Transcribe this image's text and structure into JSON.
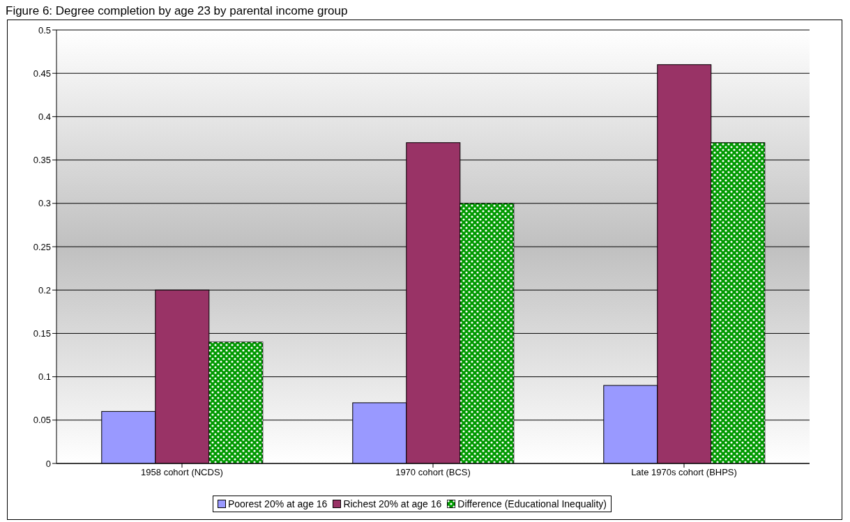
{
  "chart_data": {
    "type": "bar",
    "title": "Figure 6:  Degree completion by age 23 by parental income group",
    "categories": [
      "1958 cohort (NCDS)",
      "1970 cohort (BCS)",
      "Late 1970s cohort (BHPS)"
    ],
    "series": [
      {
        "name": "Poorest 20% at age 16",
        "color": "#9999ff",
        "values": [
          0.06,
          0.07,
          0.09
        ]
      },
      {
        "name": "Richest 20% at age 16",
        "color": "#993366",
        "values": [
          0.2,
          0.37,
          0.46
        ]
      },
      {
        "name": "Difference (Educational Inequality)",
        "color": "#009900",
        "values": [
          0.14,
          0.3,
          0.37
        ]
      }
    ],
    "ylim": [
      0,
      0.5
    ],
    "yticks": [
      0,
      0.05,
      0.1,
      0.15,
      0.2,
      0.25,
      0.3,
      0.35,
      0.4,
      0.45,
      0.5
    ],
    "grid": "y",
    "legend": "bottom"
  }
}
